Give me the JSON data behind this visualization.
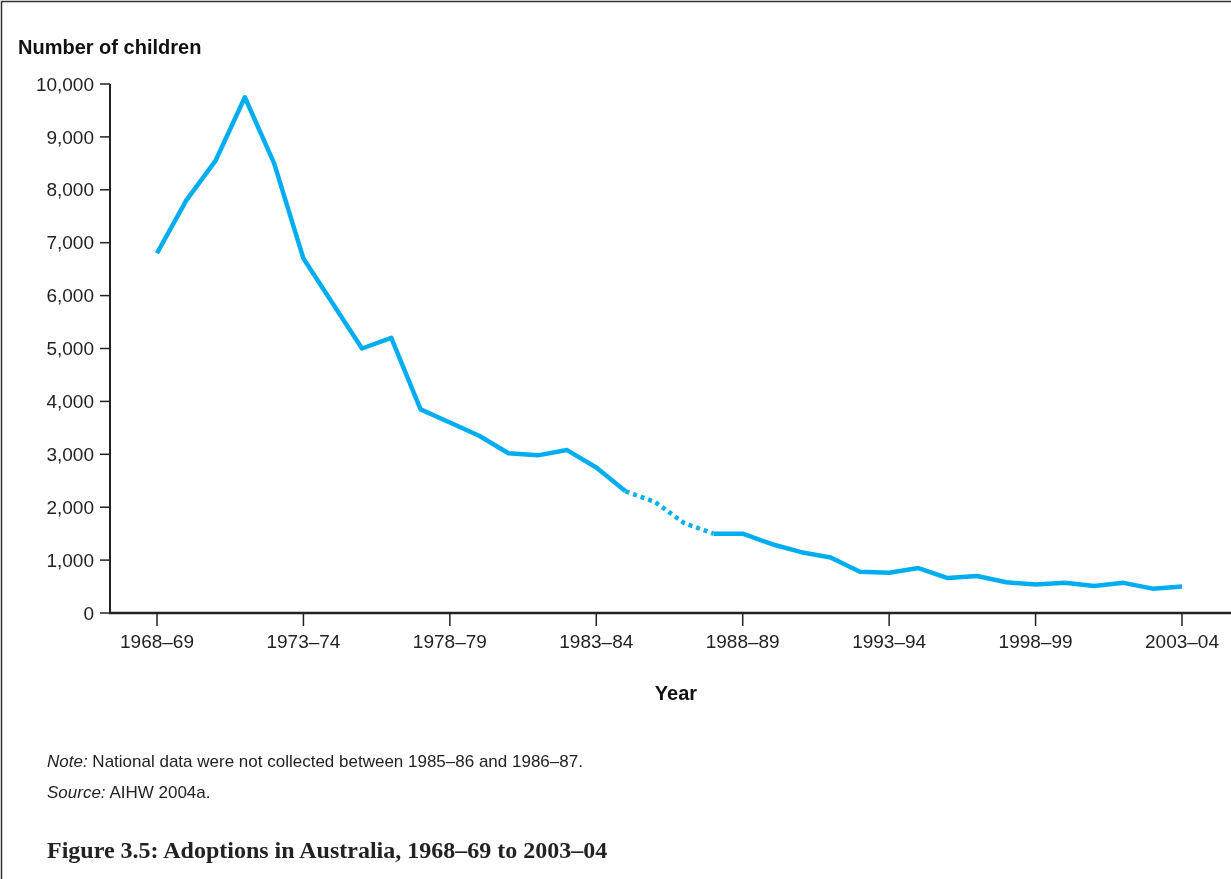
{
  "chart_data": {
    "type": "line",
    "title": "Figure 3.5: Adoptions in Australia, 1968–69 to 2003–04",
    "xlabel": "Year",
    "ylabel": "Number of children",
    "annotations": [
      "Note: National data were not collected between 1985–86 and 1986–87.",
      "Source: AIHW 2004a."
    ],
    "categories": [
      "1968–69",
      null,
      null,
      null,
      null,
      "1973–74",
      null,
      null,
      null,
      null,
      "1978–79",
      null,
      null,
      null,
      null,
      "1983–84",
      null,
      null,
      null,
      null,
      "1988–89",
      null,
      null,
      null,
      null,
      "1993–94",
      null,
      null,
      null,
      null,
      "1998–99",
      null,
      null,
      null,
      null,
      "2003–04"
    ],
    "series": [
      {
        "color": "#00aeef",
        "line_style": "solid",
        "values": [
          6800,
          7800,
          8550,
          9750,
          8500,
          6700,
          5850,
          5000,
          5200,
          3850,
          3600,
          3350,
          3020,
          2980,
          3080,
          2750,
          2300,
          null,
          null,
          1500,
          1500,
          1300,
          1150,
          1050,
          780,
          760,
          850,
          660,
          700,
          580,
          540,
          570,
          510,
          570,
          460,
          500
        ]
      },
      {
        "color": "#05b0ee",
        "line_style": "dotted",
        "values": [
          null,
          null,
          null,
          null,
          null,
          null,
          null,
          null,
          null,
          null,
          null,
          null,
          null,
          null,
          null,
          null,
          2300,
          2100,
          1700,
          1500,
          null,
          null,
          null,
          null,
          null,
          null,
          null,
          null,
          null,
          null,
          null,
          null,
          null,
          null,
          null,
          null
        ]
      }
    ],
    "ylim": [
      0,
      10000
    ],
    "yticks": [
      {
        "value": 0,
        "label": "0"
      },
      {
        "value": 1000,
        "label": "1,000"
      },
      {
        "value": 2000,
        "label": "2,000"
      },
      {
        "value": 3000,
        "label": "3,000"
      },
      {
        "value": 4000,
        "label": "4,000"
      },
      {
        "value": 5000,
        "label": "5,000"
      },
      {
        "value": 6000,
        "label": "6,000"
      },
      {
        "value": 7000,
        "label": "7,000"
      },
      {
        "value": 8000,
        "label": "8,000"
      },
      {
        "value": 9000,
        "label": "9,000"
      },
      {
        "value": 10000,
        "label": "10,000"
      }
    ],
    "grid": false
  }
}
